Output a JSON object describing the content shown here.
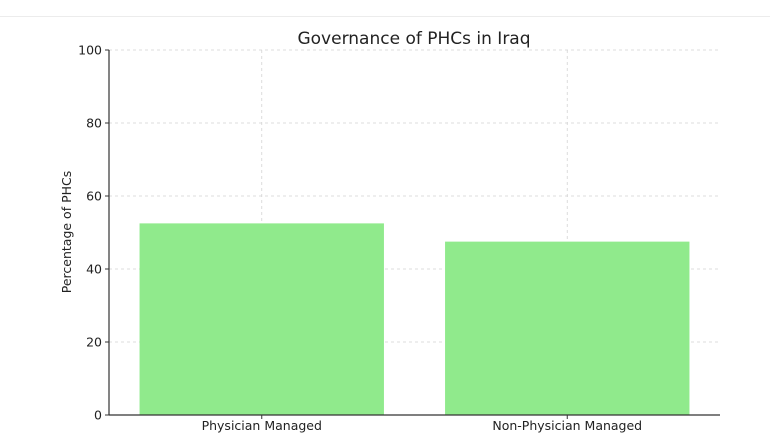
{
  "chart_data": {
    "type": "bar",
    "title": "Governance of PHCs in Iraq",
    "xlabel": "",
    "ylabel": "Percentage of PHCs",
    "categories": [
      "Physician Managed",
      "Non-Physician Managed"
    ],
    "values": [
      52.5,
      47.5
    ],
    "ylim": [
      0,
      100
    ],
    "yticks": [
      0,
      20,
      40,
      60,
      80,
      100
    ],
    "grid": true,
    "bar_color": "#90ea8c",
    "axis_color": "#333333",
    "grid_color": "#d4d4d4"
  }
}
